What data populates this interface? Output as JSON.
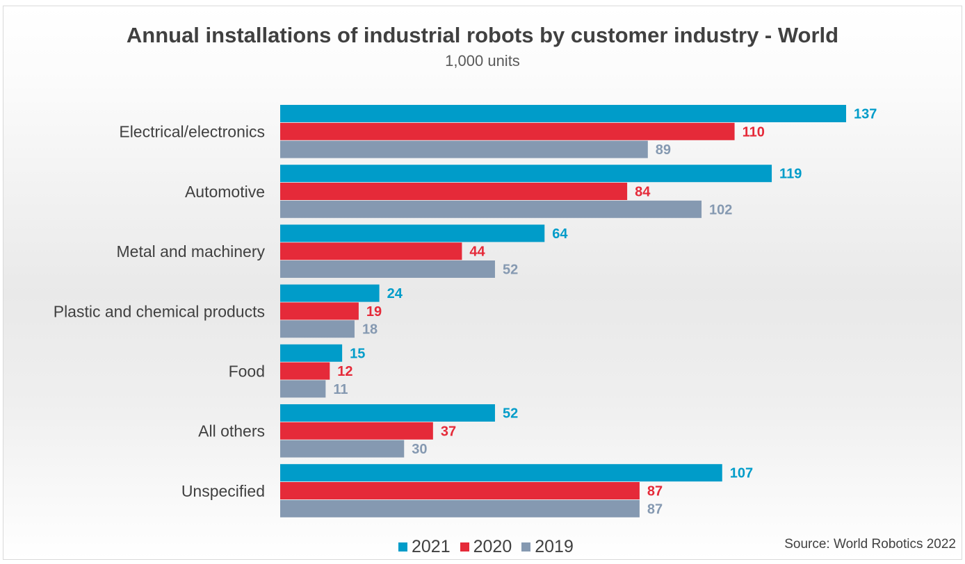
{
  "chart_data": {
    "type": "bar",
    "orientation": "horizontal",
    "title": "Annual installations of industrial robots by customer industry - World",
    "subtitle": "1,000 units",
    "source": "Source: World Robotics 2022",
    "categories": [
      "Electrical/electronics",
      "Automotive",
      "Metal and machinery",
      "Plastic and chemical products",
      "Food",
      "All others",
      "Unspecified"
    ],
    "series": [
      {
        "name": "2021",
        "color": "#009cc9",
        "values": [
          137,
          119,
          64,
          24,
          15,
          52,
          107
        ]
      },
      {
        "name": "2020",
        "color": "#e52a39",
        "values": [
          110,
          84,
          44,
          19,
          12,
          37,
          87
        ]
      },
      {
        "name": "2019",
        "color": "#8599b1",
        "values": [
          89,
          102,
          52,
          18,
          11,
          30,
          87
        ]
      }
    ],
    "xlim": [
      0,
      160
    ],
    "data_labels": true,
    "legend_position": "bottom",
    "grid": false
  }
}
